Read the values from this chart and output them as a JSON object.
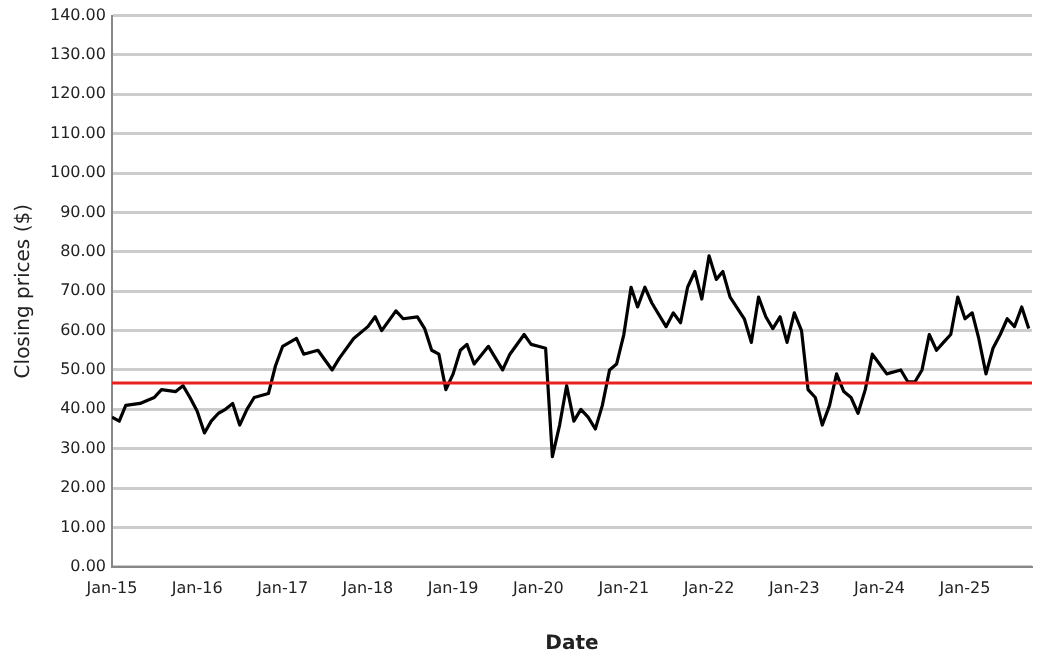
{
  "chart_data": {
    "type": "line",
    "xlabel": "Date",
    "ylabel": "Closing prices ($)",
    "x": [
      "2015-01-01",
      "2015-02-01",
      "2015-03-01",
      "2015-05-01",
      "2015-07-01",
      "2015-08-01",
      "2015-10-01",
      "2015-11-01",
      "2015-12-01",
      "2016-01-01",
      "2016-02-01",
      "2016-03-01",
      "2016-04-01",
      "2016-05-01",
      "2016-06-01",
      "2016-07-01",
      "2016-08-01",
      "2016-09-01",
      "2016-10-01",
      "2016-11-01",
      "2016-12-01",
      "2017-01-01",
      "2017-03-01",
      "2017-04-01",
      "2017-06-01",
      "2017-08-01",
      "2017-09-01",
      "2017-11-01",
      "2018-01-01",
      "2018-02-01",
      "2018-03-01",
      "2018-05-01",
      "2018-06-01",
      "2018-08-01",
      "2018-09-01",
      "2018-10-01",
      "2018-11-01",
      "2018-12-01",
      "2019-01-01",
      "2019-02-01",
      "2019-03-01",
      "2019-04-01",
      "2019-06-01",
      "2019-08-01",
      "2019-09-01",
      "2019-11-01",
      "2019-12-01",
      "2020-01-01",
      "2020-02-01",
      "2020-03-01",
      "2020-04-01",
      "2020-05-01",
      "2020-06-01",
      "2020-07-01",
      "2020-08-01",
      "2020-09-01",
      "2020-10-01",
      "2020-11-01",
      "2020-12-01",
      "2021-01-01",
      "2021-02-01",
      "2021-03-01",
      "2021-04-01",
      "2021-05-01",
      "2021-07-01",
      "2021-08-01",
      "2021-09-01",
      "2021-10-01",
      "2021-11-01",
      "2021-12-01",
      "2022-01-01",
      "2022-02-01",
      "2022-03-01",
      "2022-04-01",
      "2022-06-01",
      "2022-07-01",
      "2022-08-01",
      "2022-09-01",
      "2022-10-01",
      "2022-11-01",
      "2022-12-01",
      "2023-01-01",
      "2023-02-01",
      "2023-03-01",
      "2023-04-01",
      "2023-05-01",
      "2023-06-01",
      "2023-07-01",
      "2023-08-01",
      "2023-09-01",
      "2023-10-01",
      "2023-11-01",
      "2023-12-01",
      "2024-01-01",
      "2024-02-01",
      "2024-04-01",
      "2024-05-01",
      "2024-06-01",
      "2024-07-01",
      "2024-08-01",
      "2024-09-01",
      "2024-10-01",
      "2024-11-01",
      "2024-12-01",
      "2025-01-01",
      "2025-02-01",
      "2025-03-01",
      "2025-04-01",
      "2025-05-01",
      "2025-06-01",
      "2025-07-01",
      "2025-08-01",
      "2025-09-01",
      "2025-10-01"
    ],
    "series": [
      {
        "color": "#000000",
        "values": [
          38,
          37,
          41,
          41.5,
          43,
          45,
          44.5,
          46,
          43,
          39.5,
          34,
          37,
          39,
          40,
          41.5,
          36,
          40,
          43,
          43.5,
          44,
          51,
          56,
          58,
          54,
          55,
          50,
          53,
          58,
          61,
          63.5,
          60,
          65,
          63,
          63.5,
          60.5,
          55,
          54,
          45,
          49,
          55,
          56.5,
          51.5,
          56,
          50,
          54,
          59,
          56.5,
          56,
          55.5,
          28,
          36,
          46,
          37,
          40,
          38,
          35,
          41,
          50,
          51.5,
          59,
          71,
          66,
          71,
          67,
          61,
          64.5,
          62,
          71,
          75,
          68,
          79,
          73,
          75,
          68.5,
          63,
          57,
          68.5,
          63.5,
          60.5,
          63.5,
          57,
          64.5,
          60,
          45,
          43,
          36,
          41,
          49,
          44.5,
          43,
          39,
          45,
          54,
          51.5,
          49,
          50,
          47,
          47,
          50,
          59,
          55,
          57,
          59,
          68.5,
          63,
          64.5,
          58,
          49,
          55.5,
          59,
          63,
          61,
          66,
          60.5
        ]
      }
    ],
    "xlim": [
      "2015-01-01",
      "2025-10-15"
    ],
    "xticks": [
      {
        "value": "2015-01-01",
        "label": "Jan-15"
      },
      {
        "value": "2016-01-01",
        "label": "Jan-16"
      },
      {
        "value": "2017-01-01",
        "label": "Jan-17"
      },
      {
        "value": "2018-01-01",
        "label": "Jan-18"
      },
      {
        "value": "2019-01-01",
        "label": "Jan-19"
      },
      {
        "value": "2020-01-01",
        "label": "Jan-20"
      },
      {
        "value": "2021-01-01",
        "label": "Jan-21"
      },
      {
        "value": "2022-01-01",
        "label": "Jan-22"
      },
      {
        "value": "2023-01-01",
        "label": "Jan-23"
      },
      {
        "value": "2024-01-01",
        "label": "Jan-24"
      },
      {
        "value": "2025-01-01",
        "label": "Jan-25"
      }
    ],
    "ylim": [
      0,
      140
    ],
    "yticks": [
      {
        "value": 0,
        "label": "0.00"
      },
      {
        "value": 10,
        "label": "10.00"
      },
      {
        "value": 20,
        "label": "20.00"
      },
      {
        "value": 30,
        "label": "30.00"
      },
      {
        "value": 40,
        "label": "40.00"
      },
      {
        "value": 50,
        "label": "50.00"
      },
      {
        "value": 60,
        "label": "60.00"
      },
      {
        "value": 70,
        "label": "70.00"
      },
      {
        "value": 80,
        "label": "80.00"
      },
      {
        "value": 90,
        "label": "90.00"
      },
      {
        "value": 100,
        "label": "100.00"
      },
      {
        "value": 110,
        "label": "110.00"
      },
      {
        "value": 120,
        "label": "120.00"
      },
      {
        "value": 130,
        "label": "130.00"
      },
      {
        "value": 140,
        "label": "140.00"
      }
    ],
    "ref_lines": [
      {
        "axis": "y",
        "value": 46.7,
        "color": "#e8231e"
      }
    ],
    "grid": "y",
    "legend": false,
    "marker": "none",
    "line_style": "solid"
  }
}
